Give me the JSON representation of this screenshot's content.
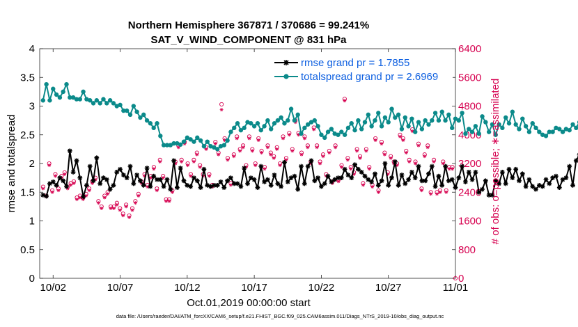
{
  "chart_data": {
    "type": "line",
    "title": "Northern Hemisphere 367871 / 370686 = 99.241%",
    "subtitle": "SAT_V_WIND_COMPONENT @ 831 hPa",
    "xlabel": "Oct.01,2019 00:00:00 start",
    "ylabel": "rmse and totalspread",
    "ylabel_right": "# of obs: o=possible; ∗=assimilated",
    "footer": "data file: /Users/raeder/DAI/ATM_forcXX/CAM6_setup/f.e21.FHIST_BGC.f09_025.CAM6assim.011/Diags_NTrS_2019-10/obs_diag_output.nc",
    "x_tick_labels": [
      "10/02",
      "10/07",
      "10/12",
      "10/17",
      "10/22",
      "10/27",
      "11/01"
    ],
    "x_tick_days": [
      2,
      7,
      12,
      17,
      22,
      27,
      32
    ],
    "xlim_days": [
      1,
      32
    ],
    "ylim": [
      0,
      4
    ],
    "y_ticks": [
      "0",
      "0.5",
      "1",
      "1.5",
      "2",
      "2.5",
      "3",
      "3.5",
      "4"
    ],
    "ylim_right": [
      0,
      6400
    ],
    "y_ticks_right": [
      "0",
      "800",
      "1600",
      "2400",
      "3200",
      "4000",
      "4800",
      "5600",
      "6400"
    ],
    "grid": false,
    "legend_position": "top-right",
    "x_step_days": 0.25,
    "colors": {
      "rmse": "#000000",
      "spread": "#0b8a8a",
      "obs": "#d6004f",
      "legend_text": "#0d5fe0"
    },
    "series": [
      {
        "name": "rmse grand pr = 1.7855",
        "axis": "left",
        "values": [
          1.45,
          1.43,
          1.65,
          1.68,
          1.62,
          1.75,
          1.7,
          1.6,
          2.22,
          1.85,
          2.05,
          1.75,
          1.42,
          1.62,
          1.95,
          1.7,
          2.1,
          1.65,
          1.75,
          1.72,
          1.55,
          1.62,
          1.85,
          1.9,
          1.8,
          1.75,
          1.95,
          1.65,
          1.8,
          1.7,
          1.62,
          1.92,
          1.6,
          1.78,
          1.72,
          1.72,
          1.6,
          1.72,
          1.55,
          2.05,
          1.58,
          1.92,
          1.7,
          1.62,
          1.6,
          1.75,
          1.7,
          1.58,
          1.9,
          1.62,
          1.6,
          1.62,
          1.62,
          1.68,
          1.58,
          1.7,
          1.75,
          1.65,
          1.65,
          1.6,
          1.92,
          1.65,
          1.75,
          1.72,
          1.58,
          1.95,
          1.68,
          1.72,
          1.62,
          1.8,
          1.65,
          1.6,
          2.02,
          1.68,
          1.75,
          1.78,
          1.55,
          1.95,
          1.65,
          1.95,
          2.05,
          1.7,
          1.75,
          1.6,
          1.65,
          1.78,
          1.68,
          1.72,
          1.75,
          1.75,
          1.9,
          1.8,
          1.75,
          1.98,
          1.9,
          1.85,
          1.78,
          1.72,
          1.68,
          1.82,
          1.62,
          1.7,
          2.0,
          1.62,
          1.75,
          2.03,
          1.62,
          1.8,
          1.65,
          1.72,
          1.85,
          1.75,
          1.95,
          1.7,
          1.7,
          1.82,
          1.95,
          1.6,
          1.78,
          1.62,
          1.95,
          1.7,
          1.72,
          1.58,
          1.75,
          1.95,
          1.68,
          1.85,
          1.72,
          1.85,
          1.5,
          1.55,
          1.7,
          1.45,
          1.45,
          1.7,
          1.65,
          1.85,
          1.65,
          1.9,
          1.75,
          1.9,
          1.7,
          1.82,
          1.6,
          1.72,
          1.6,
          1.55,
          1.62,
          1.6,
          1.72,
          1.65,
          1.75,
          1.78,
          1.58,
          1.72,
          1.75,
          1.95,
          1.62,
          2.05,
          2.15,
          1.95,
          1.65,
          1.7,
          2.2,
          2.3,
          2.02,
          1.85,
          1.78,
          2.05,
          1.98,
          2.15,
          2.02,
          2.05
        ]
      },
      {
        "name": "totalspread grand pr = 2.6969",
        "axis": "left",
        "values": [
          3.1,
          3.38,
          3.1,
          3.3,
          3.2,
          3.15,
          3.25,
          3.38,
          3.15,
          3.15,
          3.12,
          3.12,
          3.25,
          3.12,
          3.1,
          3.05,
          3.1,
          3.05,
          3.12,
          3.05,
          3.1,
          3.05,
          3.0,
          3.02,
          2.92,
          2.92,
          2.85,
          3.0,
          2.9,
          2.8,
          2.85,
          2.75,
          2.7,
          2.62,
          2.7,
          2.48,
          2.32,
          2.32,
          2.32,
          2.35,
          2.35,
          2.33,
          2.38,
          2.45,
          2.42,
          2.38,
          2.45,
          2.4,
          2.3,
          2.38,
          2.3,
          2.28,
          2.25,
          2.3,
          2.32,
          2.4,
          2.55,
          2.62,
          2.7,
          2.58,
          2.62,
          2.72,
          2.7,
          2.65,
          2.7,
          2.58,
          2.65,
          2.75,
          2.6,
          2.7,
          2.75,
          2.8,
          2.7,
          2.75,
          2.95,
          2.75,
          2.85,
          2.52,
          2.62,
          2.68,
          2.72,
          2.75,
          2.65,
          2.5,
          2.45,
          2.55,
          2.6,
          2.52,
          2.5,
          2.55,
          2.5,
          2.62,
          2.7,
          2.58,
          2.75,
          2.6,
          2.72,
          2.85,
          2.65,
          2.75,
          2.88,
          2.65,
          2.8,
          2.72,
          2.95,
          2.8,
          2.85,
          2.6,
          2.8,
          2.65,
          2.78,
          2.55,
          2.72,
          2.6,
          2.75,
          2.68,
          2.75,
          2.88,
          2.75,
          2.9,
          2.75,
          2.85,
          2.62,
          2.78,
          2.75,
          2.88,
          2.52,
          2.6,
          2.55,
          2.65,
          2.52,
          2.82,
          2.72,
          2.55,
          2.68,
          2.5,
          2.68,
          2.62,
          2.8,
          2.7,
          2.9,
          2.68,
          2.6,
          2.78,
          2.65,
          2.55,
          2.7,
          2.62,
          2.55,
          2.5,
          2.48,
          2.55,
          2.55,
          2.62,
          2.6,
          2.55,
          2.6,
          2.58,
          2.68,
          2.62,
          2.72,
          2.68,
          2.75,
          2.65,
          2.62,
          2.6,
          2.3,
          2.55,
          2.65,
          2.65,
          2.55,
          2.72,
          2.5,
          2.72,
          2.65,
          2.68,
          2.45,
          2.45
        ]
      },
      {
        "name": "obs possible",
        "axis": "right",
        "values": [
          2550,
          2300,
          3200,
          2450,
          2900,
          2500,
          2850,
          2950,
          2550,
          2650,
          2700,
          2250,
          2300,
          2250,
          2350,
          2500,
          2700,
          2800,
          2150,
          2000,
          2300,
          2400,
          2000,
          2000,
          2100,
          1950,
          1800,
          2050,
          1750,
          1950,
          2150,
          2350,
          2700,
          2900,
          2600,
          2850,
          3100,
          2500,
          3300,
          2850,
          2200,
          2200,
          2450,
          3250,
          3700,
          3300,
          3800,
          3200,
          2900,
          3300,
          3500,
          3150,
          2900,
          3650,
          2900,
          2600,
          3800,
          3500,
          4850,
          3900,
          3350,
          2650,
          3450,
          3950,
          3600,
          3700,
          3150,
          3950,
          3600,
          3200,
          3900,
          3550,
          3100,
          3700,
          3500,
          3400,
          3650,
          3200,
          3950,
          3350,
          4050,
          3600,
          4400,
          4050,
          3500,
          3950,
          3700,
          3250,
          4200,
          3700,
          3250,
          3450,
          2900,
          3550,
          2700,
          3700,
          2750,
          3150,
          5000,
          3350,
          3100,
          2950,
          3600,
          3400,
          2650,
          3600,
          3100,
          2600,
          3900,
          2450,
          3800,
          3500,
          2950,
          3400,
          3250,
          3200,
          4000,
          3900,
          3550,
          3300,
          4150,
          3250,
          3750,
          2500,
          3450,
          3700,
          2400,
          3300,
          2400,
          2450,
          3250,
          2450,
          3100,
          3100
        ]
      },
      {
        "name": "obs assimilated",
        "axis": "right",
        "values": [
          2500,
          2280,
          3150,
          2400,
          2850,
          2450,
          2800,
          2900,
          2500,
          2600,
          2650,
          2200,
          2250,
          2200,
          2300,
          2450,
          2650,
          2750,
          2100,
          1950,
          2250,
          2350,
          1950,
          1950,
          2050,
          1900,
          1750,
          2000,
          1700,
          1900,
          2100,
          2300,
          2650,
          2850,
          2550,
          2800,
          3050,
          2450,
          3250,
          2800,
          2150,
          2150,
          2400,
          3200,
          3650,
          3250,
          3750,
          3150,
          2850,
          3250,
          3450,
          3100,
          2850,
          3600,
          2850,
          2550,
          3750,
          3450,
          4700,
          3850,
          3300,
          2600,
          3400,
          3900,
          3550,
          3650,
          3100,
          3900,
          3550,
          3150,
          3850,
          3500,
          3050,
          3650,
          3450,
          3350,
          3600,
          3150,
          3900,
          3300,
          4000,
          3550,
          4350,
          4000,
          3450,
          3900,
          3650,
          3200,
          4150,
          3650,
          3200,
          3400,
          2850,
          3500,
          2650,
          3650,
          2700,
          3100,
          4950,
          3300,
          3050,
          2900,
          3550,
          3350,
          2600,
          3550,
          3050,
          2550,
          3850,
          2400,
          3750,
          3450,
          2900,
          3350,
          3200,
          3150,
          3950,
          3850,
          3500,
          3250,
          4100,
          3200,
          3700,
          2450,
          3400,
          3650,
          2350,
          3250,
          2350,
          2400,
          3200,
          2400,
          3050,
          3050
        ]
      }
    ],
    "legend": [
      {
        "label": "rmse grand pr = 1.7855"
      },
      {
        "label": "totalspread grand pr = 2.6969"
      }
    ]
  }
}
